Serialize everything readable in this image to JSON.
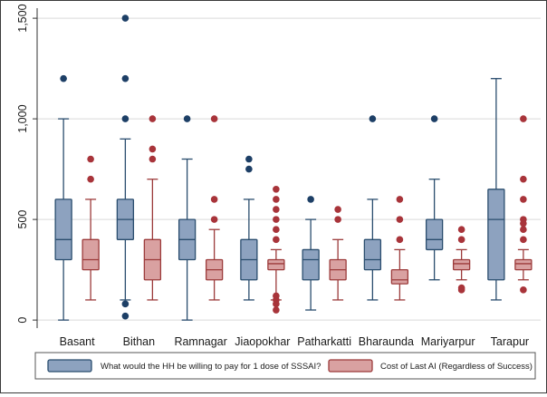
{
  "chart_data": {
    "type": "boxplot",
    "title": "",
    "xlabel": "",
    "ylabel": "",
    "ylim": [
      -40,
      1550
    ],
    "yticks": [
      0,
      500,
      1000,
      1500
    ],
    "ytick_labels": [
      "0",
      "500",
      "1,000",
      "1,500"
    ],
    "grid": "horizontal",
    "legend_position": "bottom",
    "colors": {
      "series_1_fill": "#8da2bf",
      "series_1_stroke": "#2a4d6e",
      "series_1_outlier": "#1d3f66",
      "series_2_fill": "#d9a1a1",
      "series_2_stroke": "#9c3b3b",
      "series_2_outlier": "#a8343a",
      "grid": "#d9d9d9"
    },
    "categories": [
      "Basant",
      "Bithan",
      "Ramnagar",
      "Jiaopokhar",
      "Patharkatti",
      "Bharaunda",
      "Mariyarpur",
      "Tarapur"
    ],
    "series": [
      {
        "name": "What would the HH be willing to pay for 1 dose of SSSAI?",
        "boxes": [
          {
            "min": 0,
            "q1": 300,
            "median": 400,
            "q3": 600,
            "max": 1000,
            "outliers": [
              1200
            ]
          },
          {
            "min": 100,
            "q1": 400,
            "median": 500,
            "q3": 600,
            "max": 900,
            "outliers": [
              80,
              20,
              1000,
              1200,
              1500
            ]
          },
          {
            "min": 0,
            "q1": 300,
            "median": 400,
            "q3": 500,
            "max": 800,
            "outliers": [
              1000
            ]
          },
          {
            "min": 100,
            "q1": 200,
            "median": 300,
            "q3": 400,
            "max": 600,
            "outliers": [
              750,
              800
            ]
          },
          {
            "min": 50,
            "q1": 200,
            "median": 300,
            "q3": 350,
            "max": 500,
            "outliers": [
              600
            ]
          },
          {
            "min": 100,
            "q1": 250,
            "median": 300,
            "q3": 400,
            "max": 600,
            "outliers": [
              1000
            ]
          },
          {
            "min": 200,
            "q1": 350,
            "median": 400,
            "q3": 500,
            "max": 700,
            "outliers": [
              1000
            ]
          },
          {
            "min": 100,
            "q1": 200,
            "median": 500,
            "q3": 650,
            "max": 1200,
            "outliers": []
          }
        ]
      },
      {
        "name": "Cost of Last AI (Regardless of Success)",
        "boxes": [
          {
            "min": 100,
            "q1": 250,
            "median": 300,
            "q3": 400,
            "max": 600,
            "outliers": [
              700,
              800
            ]
          },
          {
            "min": 100,
            "q1": 200,
            "median": 300,
            "q3": 400,
            "max": 700,
            "outliers": [
              800,
              850,
              1000
            ]
          },
          {
            "min": 100,
            "q1": 200,
            "median": 250,
            "q3": 300,
            "max": 450,
            "outliers": [
              500,
              600,
              1000
            ]
          },
          {
            "min": 100,
            "q1": 250,
            "median": 280,
            "q3": 300,
            "max": 350,
            "outliers": [
              50,
              80,
              100,
              120,
              400,
              450,
              500,
              550,
              600,
              650
            ]
          },
          {
            "min": 100,
            "q1": 200,
            "median": 250,
            "q3": 300,
            "max": 400,
            "outliers": [
              500,
              550
            ]
          },
          {
            "min": 100,
            "q1": 180,
            "median": 200,
            "q3": 250,
            "max": 350,
            "outliers": [
              400,
              500,
              600
            ]
          },
          {
            "min": 200,
            "q1": 250,
            "median": 280,
            "q3": 300,
            "max": 350,
            "outliers": [
              150,
              160,
              400,
              450
            ]
          },
          {
            "min": 200,
            "q1": 250,
            "median": 280,
            "q3": 300,
            "max": 350,
            "outliers": [
              150,
              400,
              450,
              480,
              500,
              600,
              700,
              1000
            ]
          }
        ]
      }
    ]
  }
}
